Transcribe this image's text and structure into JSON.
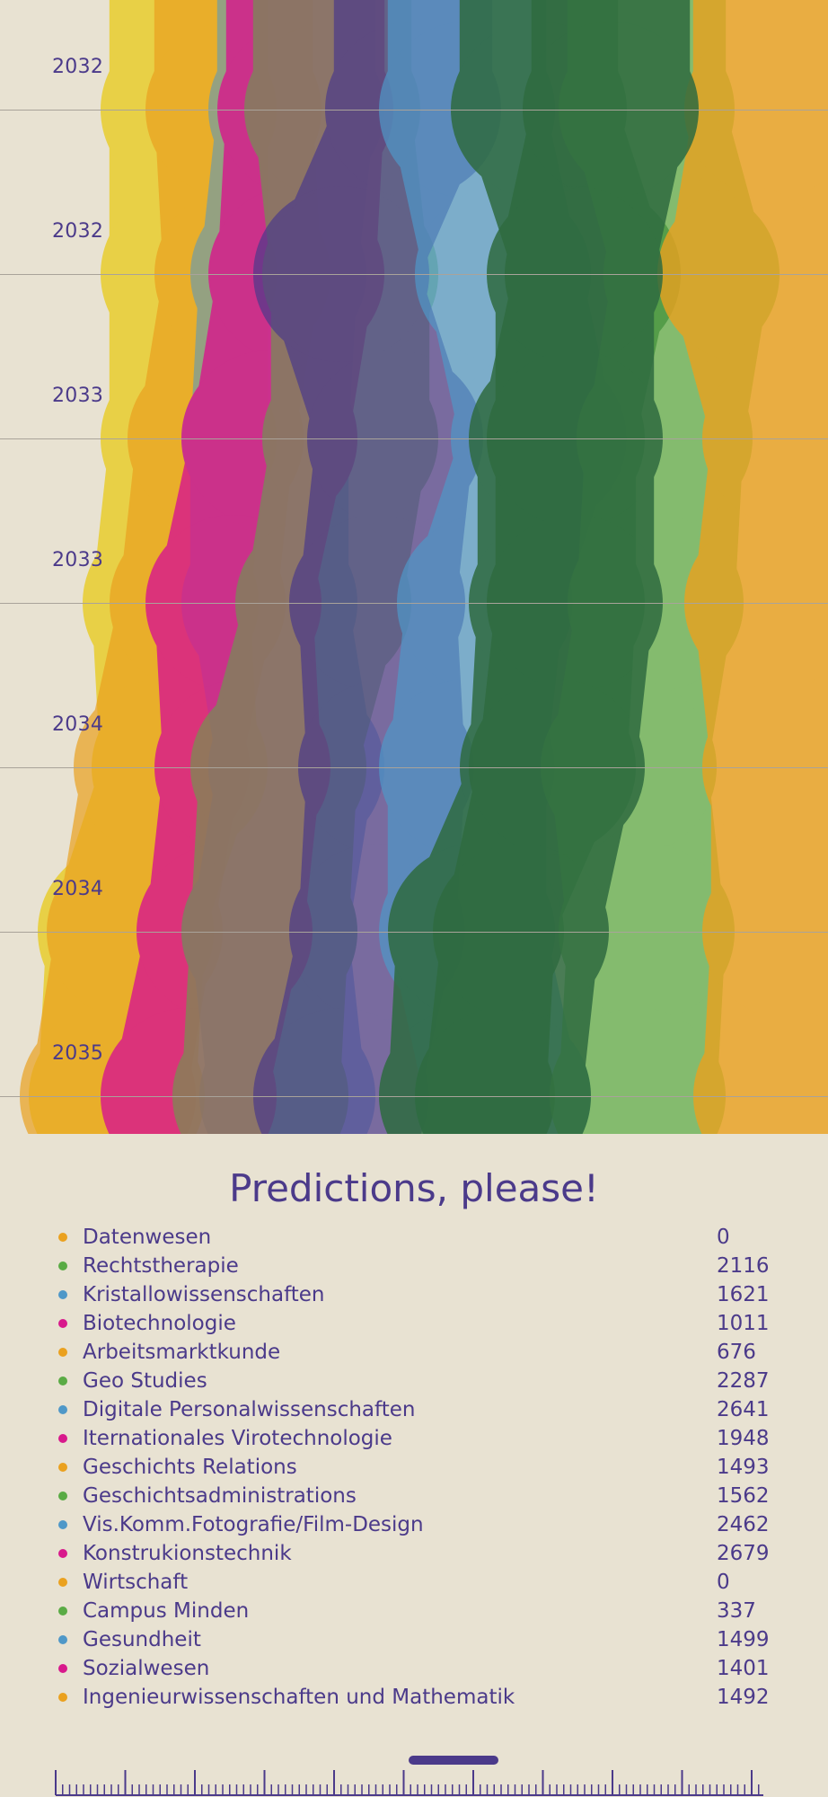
{
  "chart": {
    "title": "Predictions, please!",
    "year_labels": [
      "2032",
      "2032",
      "2033",
      "2033",
      "2034",
      "2034",
      "2035"
    ]
  },
  "colors": {
    "orange": "#eaa11f",
    "green": "#5aab45",
    "blue": "#4f98c8",
    "magenta": "#d8198c",
    "yellow": "#e8cb20",
    "purple": "#4b3a8a",
    "darkgreen": "#2f6b40",
    "background": "#e8e2d2"
  },
  "legend": [
    {
      "label": "Datenwesen",
      "value": "0",
      "color": "#eaa11f"
    },
    {
      "label": "Rechtstherapie",
      "value": "2116",
      "color": "#5aab45"
    },
    {
      "label": "Kristallowissenschaften",
      "value": "1621",
      "color": "#4f98c8"
    },
    {
      "label": "Biotechnologie",
      "value": "1011",
      "color": "#d8198c"
    },
    {
      "label": "Arbeitsmarktkunde",
      "value": "676",
      "color": "#eaa11f"
    },
    {
      "label": "Geo Studies",
      "value": "2287",
      "color": "#5aab45"
    },
    {
      "label": "Digitale Personalwissenschaften",
      "value": "2641",
      "color": "#4f98c8"
    },
    {
      "label": "Iternationales Virotechnologie",
      "value": "1948",
      "color": "#d8198c"
    },
    {
      "label": "Geschichts Relations",
      "value": "1493",
      "color": "#eaa11f"
    },
    {
      "label": "Geschichtsadministrations",
      "value": "1562",
      "color": "#5aab45"
    },
    {
      "label": "Vis.Komm.Fotografie/Film-Design",
      "value": "2462",
      "color": "#4f98c8"
    },
    {
      "label": "Konstrukionstechnik",
      "value": "2679",
      "color": "#d8198c"
    },
    {
      "label": "Wirtschaft",
      "value": "0",
      "color": "#eaa11f"
    },
    {
      "label": "Campus Minden",
      "value": "337",
      "color": "#5aab45"
    },
    {
      "label": "Gesundheit",
      "value": "1499",
      "color": "#4f98c8"
    },
    {
      "label": "Sozialwesen",
      "value": "1401",
      "color": "#d8198c"
    },
    {
      "label": "Ingenieurwissenschaften und Mathematik",
      "value": "1492",
      "color": "#eaa11f"
    }
  ]
}
